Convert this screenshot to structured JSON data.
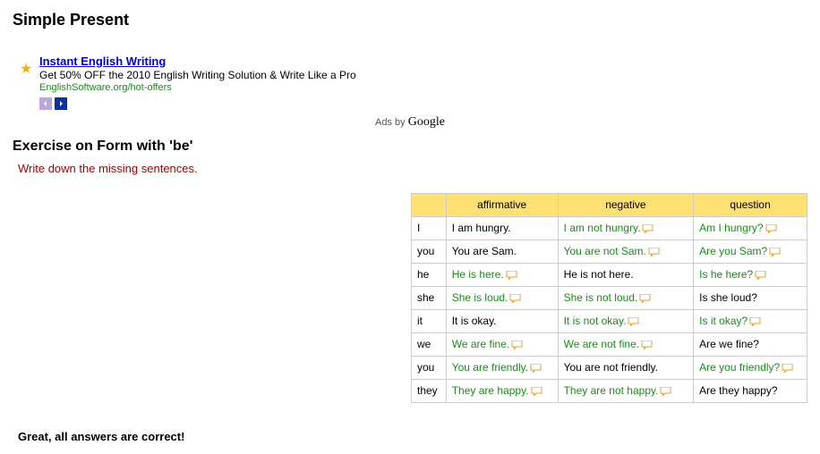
{
  "page_title": "Simple Present",
  "ad": {
    "title": "Instant English Writing",
    "text": "Get 50% OFF the 2010 English Writing Solution & Write Like a Pro",
    "url": "EnglishSoftware.org/hot-offers"
  },
  "ads_by_prefix": "Ads by ",
  "ads_by_brand": "Google",
  "exercise_title": "Exercise on Form with 'be'",
  "instruction": "Write down the missing sentences.",
  "columns": {
    "affirmative": "affirmative",
    "negative": "negative",
    "question": "question"
  },
  "rows": [
    {
      "pronoun": "I",
      "affirmative": {
        "text": "I am hungry.",
        "answer": false,
        "bubble": false
      },
      "negative": {
        "text": "I am not hungry.",
        "answer": true,
        "bubble": true
      },
      "question": {
        "text": "Am I hungry?",
        "answer": true,
        "bubble": true
      }
    },
    {
      "pronoun": "you",
      "affirmative": {
        "text": "You are Sam.",
        "answer": false,
        "bubble": false
      },
      "negative": {
        "text": "You are not Sam.",
        "answer": true,
        "bubble": true
      },
      "question": {
        "text": "Are you Sam?",
        "answer": true,
        "bubble": true
      }
    },
    {
      "pronoun": "he",
      "affirmative": {
        "text": "He is here.",
        "answer": true,
        "bubble": true
      },
      "negative": {
        "text": "He is not here.",
        "answer": false,
        "bubble": false
      },
      "question": {
        "text": "Is he here?",
        "answer": true,
        "bubble": true
      }
    },
    {
      "pronoun": "she",
      "affirmative": {
        "text": "She is loud.",
        "answer": true,
        "bubble": true
      },
      "negative": {
        "text": "She is not loud.",
        "answer": true,
        "bubble": true
      },
      "question": {
        "text": "Is she loud?",
        "answer": false,
        "bubble": false
      }
    },
    {
      "pronoun": "it",
      "affirmative": {
        "text": "It is okay.",
        "answer": false,
        "bubble": false
      },
      "negative": {
        "text": "It is not okay.",
        "answer": true,
        "bubble": true
      },
      "question": {
        "text": "Is it okay?",
        "answer": true,
        "bubble": true
      }
    },
    {
      "pronoun": "we",
      "affirmative": {
        "text": "We are fine.",
        "answer": true,
        "bubble": true
      },
      "negative": {
        "text": "We are not fine.",
        "answer": true,
        "bubble": true
      },
      "question": {
        "text": "Are we fine?",
        "answer": false,
        "bubble": false
      }
    },
    {
      "pronoun": "you",
      "affirmative": {
        "text": "You are friendly.",
        "answer": true,
        "bubble": true
      },
      "negative": {
        "text": "You are not friendly.",
        "answer": false,
        "bubble": false
      },
      "question": {
        "text": "Are you friendly?",
        "answer": true,
        "bubble": true
      }
    },
    {
      "pronoun": "they",
      "affirmative": {
        "text": "They are happy.",
        "answer": true,
        "bubble": true
      },
      "negative": {
        "text": "They are not happy.",
        "answer": true,
        "bubble": true
      },
      "question": {
        "text": "Are they happy?",
        "answer": false,
        "bubble": false
      }
    }
  ],
  "result": "Great, all answers are correct!",
  "bubble_color": "#e0a030"
}
